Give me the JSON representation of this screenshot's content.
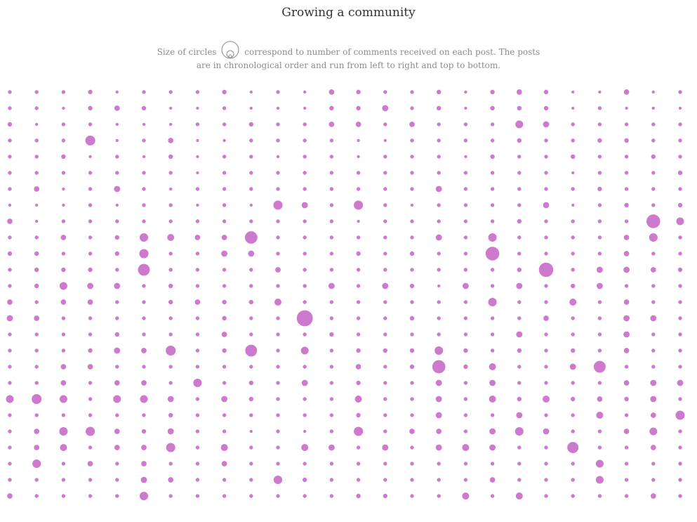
{
  "title": "Growing a community",
  "subtitle": {
    "before_icon": "Size of circles",
    "after_icon": "correspond to number of comments received on each post. The posts",
    "line2": "are in chronological order and run from left to right and top to bottom."
  },
  "legend_icon": "circle-size-icon",
  "colors": {
    "bubble": "#c158c1",
    "text": "#333333",
    "subtitle": "#8c8c8c"
  },
  "chart_data": {
    "type": "scatter",
    "encoding": "bubble size = number of comments per post; posts ordered chronologically left-to-right, top-to-bottom",
    "columns": 26,
    "rows": 26,
    "posts": [
      [
        3,
        3,
        3,
        4,
        2,
        3,
        3,
        3,
        4,
        2,
        3,
        2,
        5,
        4,
        3,
        3,
        4,
        2,
        4,
        5,
        4,
        2,
        2,
        5,
        2,
        3
      ],
      [
        3,
        3,
        2,
        4,
        5,
        4,
        2,
        2,
        3,
        2,
        2,
        2,
        4,
        4,
        6,
        3,
        4,
        2,
        4,
        4,
        4,
        2,
        3,
        2,
        2,
        2
      ],
      [
        4,
        2,
        3,
        3,
        2,
        2,
        2,
        3,
        3,
        4,
        3,
        3,
        5,
        5,
        3,
        5,
        3,
        3,
        3,
        8,
        6,
        3,
        3,
        3,
        3,
        3
      ],
      [
        3,
        3,
        3,
        11,
        2,
        3,
        5,
        2,
        2,
        3,
        3,
        3,
        3,
        2,
        2,
        3,
        3,
        3,
        3,
        4,
        3,
        3,
        4,
        4,
        3,
        3
      ],
      [
        3,
        3,
        4,
        2,
        3,
        2,
        4,
        2,
        3,
        3,
        2,
        3,
        3,
        2,
        3,
        3,
        3,
        2,
        4,
        3,
        3,
        4,
        3,
        3,
        4,
        3
      ],
      [
        3,
        3,
        3,
        3,
        3,
        3,
        3,
        2,
        3,
        3,
        3,
        3,
        3,
        3,
        3,
        3,
        3,
        3,
        3,
        3,
        3,
        2,
        3,
        3,
        3,
        4
      ],
      [
        3,
        5,
        2,
        3,
        6,
        3,
        2,
        3,
        3,
        3,
        3,
        3,
        3,
        3,
        3,
        3,
        6,
        3,
        3,
        3,
        3,
        3,
        4,
        3,
        3,
        3
      ],
      [
        2,
        2,
        2,
        3,
        2,
        3,
        3,
        2,
        3,
        2,
        10,
        6,
        3,
        10,
        3,
        2,
        3,
        3,
        3,
        3,
        6,
        2,
        3,
        4,
        3,
        4
      ],
      [
        5,
        2,
        3,
        3,
        3,
        3,
        3,
        3,
        3,
        3,
        3,
        3,
        3,
        2,
        3,
        3,
        3,
        3,
        3,
        4,
        3,
        3,
        3,
        3,
        17,
        8
      ],
      [
        3,
        3,
        5,
        3,
        4,
        9,
        7,
        5,
        5,
        15,
        3,
        3,
        3,
        3,
        3,
        3,
        6,
        3,
        9,
        3,
        3,
        3,
        3,
        5,
        9,
        3
      ],
      [
        4,
        4,
        3,
        3,
        4,
        10,
        3,
        3,
        6,
        6,
        3,
        3,
        3,
        4,
        3,
        4,
        3,
        3,
        17,
        3,
        3,
        3,
        3,
        5,
        3,
        3
      ],
      [
        3,
        4,
        4,
        4,
        3,
        14,
        3,
        3,
        3,
        3,
        5,
        3,
        3,
        3,
        3,
        3,
        3,
        3,
        3,
        4,
        18,
        3,
        6,
        6,
        5,
        4
      ],
      [
        3,
        4,
        8,
        6,
        6,
        3,
        4,
        3,
        3,
        3,
        3,
        3,
        6,
        3,
        6,
        4,
        2,
        6,
        3,
        6,
        3,
        4,
        6,
        3,
        3,
        3
      ],
      [
        5,
        3,
        5,
        5,
        3,
        3,
        4,
        5,
        4,
        4,
        7,
        3,
        3,
        3,
        3,
        3,
        3,
        3,
        9,
        3,
        3,
        7,
        3,
        5,
        3,
        3
      ],
      [
        6,
        5,
        3,
        3,
        3,
        3,
        3,
        3,
        4,
        3,
        3,
        21,
        3,
        3,
        3,
        4,
        3,
        3,
        3,
        3,
        5,
        3,
        3,
        6,
        6,
        3
      ],
      [
        3,
        3,
        3,
        3,
        4,
        3,
        3,
        3,
        5,
        3,
        3,
        3,
        4,
        3,
        3,
        3,
        3,
        3,
        3,
        6,
        3,
        3,
        3,
        6,
        3,
        3
      ],
      [
        3,
        3,
        3,
        4,
        6,
        5,
        11,
        3,
        4,
        14,
        3,
        8,
        3,
        4,
        4,
        4,
        9,
        4,
        3,
        4,
        3,
        4,
        3,
        5,
        3,
        3
      ],
      [
        3,
        3,
        5,
        5,
        3,
        3,
        3,
        3,
        3,
        3,
        3,
        3,
        3,
        5,
        3,
        4,
        16,
        4,
        7,
        3,
        3,
        6,
        14,
        3,
        3,
        3
      ],
      [
        3,
        3,
        5,
        3,
        5,
        5,
        3,
        9,
        3,
        4,
        3,
        6,
        3,
        4,
        3,
        3,
        6,
        3,
        6,
        3,
        3,
        3,
        3,
        5,
        6,
        6
      ],
      [
        8,
        11,
        8,
        3,
        8,
        8,
        6,
        3,
        6,
        4,
        3,
        3,
        3,
        7,
        3,
        3,
        6,
        3,
        7,
        4,
        7,
        4,
        5,
        4,
        6,
        3
      ],
      [
        3,
        3,
        3,
        3,
        3,
        3,
        4,
        3,
        3,
        3,
        3,
        3,
        3,
        4,
        3,
        3,
        6,
        3,
        3,
        6,
        3,
        3,
        7,
        3,
        5,
        10
      ],
      [
        3,
        5,
        9,
        10,
        5,
        4,
        6,
        3,
        3,
        2,
        3,
        2,
        3,
        10,
        3,
        5,
        5,
        3,
        6,
        9,
        6,
        3,
        3,
        5,
        8,
        3
      ],
      [
        3,
        5,
        7,
        3,
        5,
        5,
        10,
        3,
        7,
        3,
        3,
        7,
        6,
        3,
        6,
        3,
        6,
        7,
        6,
        3,
        3,
        13,
        3,
        3,
        5,
        3
      ],
      [
        3,
        9,
        3,
        5,
        3,
        5,
        3,
        3,
        5,
        3,
        3,
        3,
        3,
        3,
        3,
        3,
        3,
        3,
        3,
        3,
        3,
        3,
        8,
        3,
        3,
        3
      ],
      [
        3,
        3,
        3,
        3,
        3,
        6,
        5,
        3,
        3,
        3,
        9,
        4,
        3,
        3,
        3,
        3,
        3,
        3,
        5,
        3,
        3,
        3,
        8,
        3,
        3,
        3
      ],
      [
        5,
        3,
        3,
        3,
        3,
        9,
        3,
        3,
        3,
        3,
        3,
        3,
        3,
        4,
        4,
        3,
        3,
        7,
        3,
        7,
        3,
        3,
        3,
        3,
        5,
        3
      ]
    ]
  }
}
